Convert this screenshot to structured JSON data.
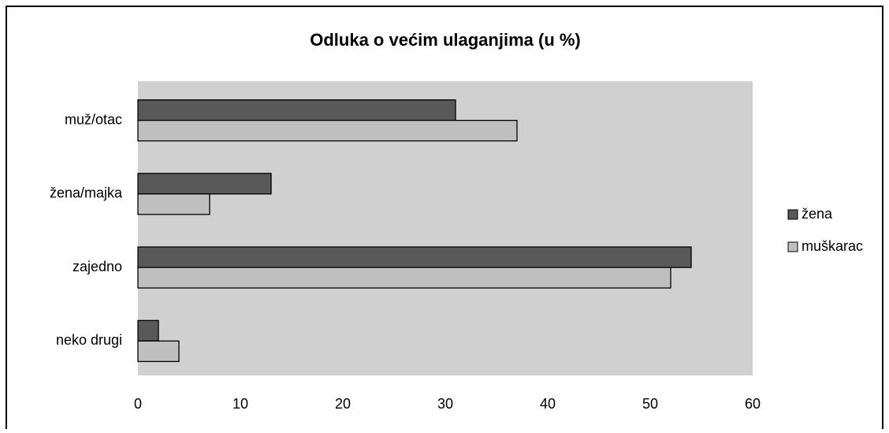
{
  "chart_data": {
    "type": "bar",
    "orientation": "horizontal",
    "title": "Odluka o većim ulaganjima (u %)",
    "categories": [
      "muž/otac",
      "žena/majka",
      "zajedno",
      "neko drugi"
    ],
    "series": [
      {
        "name": "žena",
        "color": "#595959",
        "values": [
          31,
          13,
          54,
          2
        ]
      },
      {
        "name": "muškarac",
        "color": "#bfbfbf",
        "values": [
          37,
          7,
          52,
          4
        ]
      }
    ],
    "xlim": [
      0,
      60
    ],
    "xticks": [
      0,
      10,
      20,
      30,
      40,
      50,
      60
    ],
    "grid": false,
    "legend": "right"
  }
}
